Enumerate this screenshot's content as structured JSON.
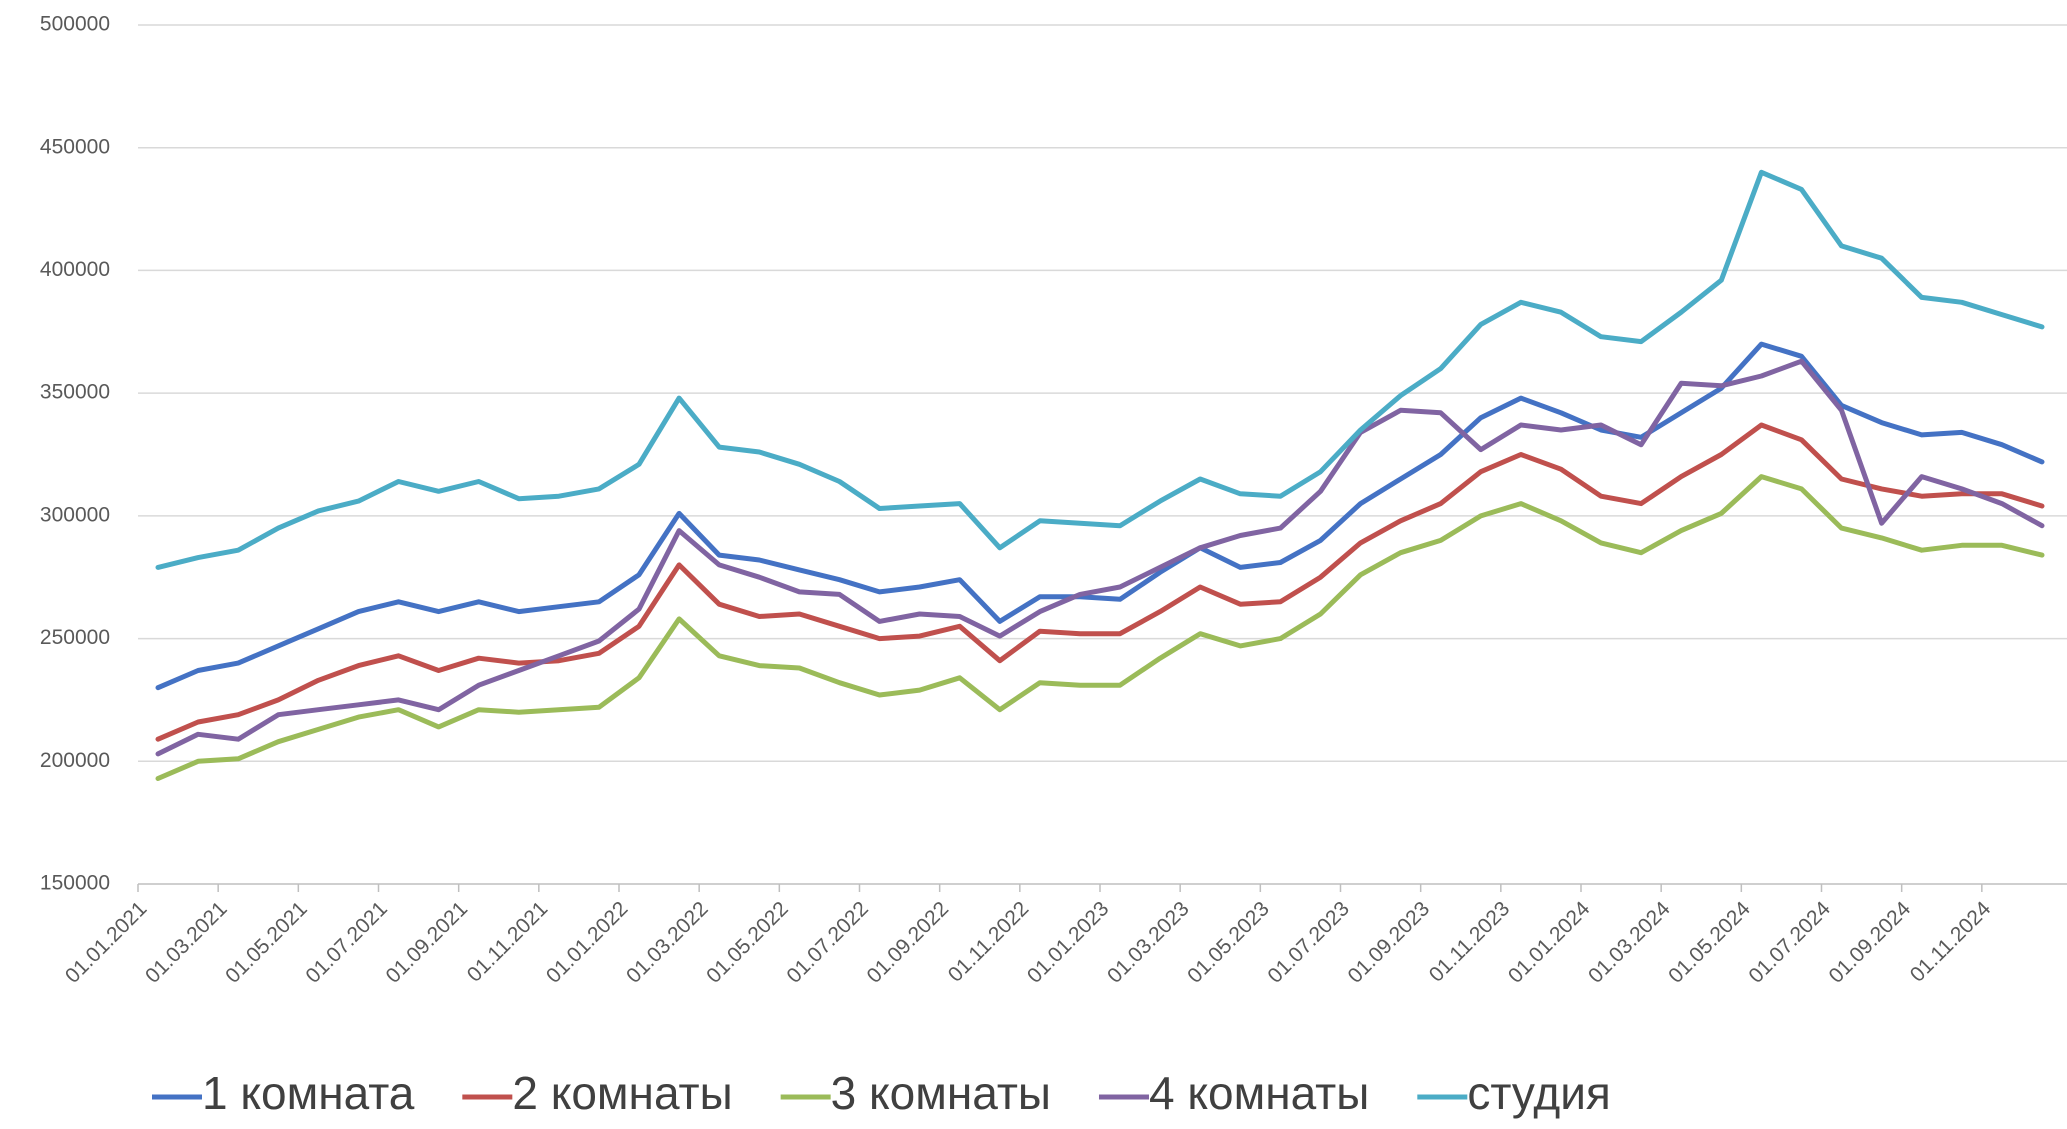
{
  "chart_data": {
    "type": "line",
    "categories": [
      "01.01.2021",
      null,
      "01.03.2021",
      null,
      "01.05.2021",
      null,
      "01.07.2021",
      null,
      "01.09.2021",
      null,
      "01.11.2021",
      null,
      "01.01.2022",
      null,
      "01.03.2022",
      null,
      "01.05.2022",
      null,
      "01.07.2022",
      null,
      "01.09.2022",
      null,
      "01.11.2022",
      null,
      "01.01.2023",
      null,
      "01.03.2023",
      null,
      "01.05.2023",
      null,
      "01.07.2023",
      null,
      "01.09.2023",
      null,
      "01.11.2023",
      null,
      "01.01.2024",
      null,
      "01.03.2024",
      null,
      "01.05.2024",
      null,
      "01.07.2024",
      null,
      "01.09.2024",
      null,
      "01.11.2024",
      null
    ],
    "series": [
      {
        "name": "1 комната",
        "color": "#4472c4",
        "values": [
          230000,
          237000,
          240000,
          247000,
          254000,
          261000,
          265000,
          261000,
          265000,
          261000,
          263000,
          265000,
          276000,
          301000,
          284000,
          282000,
          278000,
          274000,
          269000,
          271000,
          274000,
          257000,
          267000,
          267000,
          266000,
          277000,
          287000,
          279000,
          281000,
          290000,
          305000,
          315000,
          325000,
          340000,
          348000,
          342000,
          335000,
          332000,
          342000,
          352000,
          370000,
          365000,
          345000,
          338000,
          333000,
          334000,
          329000,
          322000
        ]
      },
      {
        "name": "2 комнаты",
        "color": "#c0504d",
        "values": [
          209000,
          216000,
          219000,
          225000,
          233000,
          239000,
          243000,
          237000,
          242000,
          240000,
          241000,
          244000,
          255000,
          280000,
          264000,
          259000,
          260000,
          255000,
          250000,
          251000,
          255000,
          241000,
          253000,
          252000,
          252000,
          261000,
          271000,
          264000,
          265000,
          275000,
          289000,
          298000,
          305000,
          318000,
          325000,
          319000,
          308000,
          305000,
          316000,
          325000,
          337000,
          331000,
          315000,
          311000,
          308000,
          309000,
          309000,
          304000
        ]
      },
      {
        "name": "3 комнаты",
        "color": "#9bbb59",
        "values": [
          193000,
          200000,
          201000,
          208000,
          213000,
          218000,
          221000,
          214000,
          221000,
          220000,
          221000,
          222000,
          234000,
          258000,
          243000,
          239000,
          238000,
          232000,
          227000,
          229000,
          234000,
          221000,
          232000,
          231000,
          231000,
          242000,
          252000,
          247000,
          250000,
          260000,
          276000,
          285000,
          290000,
          300000,
          305000,
          298000,
          289000,
          285000,
          294000,
          301000,
          316000,
          311000,
          295000,
          291000,
          286000,
          288000,
          288000,
          284000
        ]
      },
      {
        "name": "4 комнаты",
        "color": "#8064a2",
        "values": [
          203000,
          211000,
          209000,
          219000,
          221000,
          223000,
          225000,
          221000,
          231000,
          237000,
          243000,
          249000,
          262000,
          294000,
          280000,
          275000,
          269000,
          268000,
          257000,
          260000,
          259000,
          251000,
          261000,
          268000,
          271000,
          279000,
          287000,
          292000,
          295000,
          310000,
          334000,
          343000,
          342000,
          327000,
          337000,
          335000,
          337000,
          329000,
          354000,
          353000,
          357000,
          363000,
          343000,
          297000,
          316000,
          311000,
          305000,
          296000
        ]
      },
      {
        "name": "студия",
        "color": "#4bacc6",
        "values": [
          279000,
          283000,
          286000,
          295000,
          302000,
          306000,
          314000,
          310000,
          314000,
          307000,
          308000,
          311000,
          321000,
          348000,
          328000,
          326000,
          321000,
          314000,
          303000,
          304000,
          305000,
          287000,
          298000,
          297000,
          296000,
          306000,
          315000,
          309000,
          308000,
          318000,
          335000,
          349000,
          360000,
          378000,
          387000,
          383000,
          373000,
          371000,
          383000,
          396000,
          440000,
          433000,
          410000,
          405000,
          389000,
          387000,
          382000,
          377000
        ]
      }
    ],
    "ylim": [
      150000,
      500000
    ],
    "yticks": [
      150000,
      200000,
      250000,
      300000,
      350000,
      400000,
      450000,
      500000
    ],
    "grid": true,
    "legend": "bottom"
  }
}
